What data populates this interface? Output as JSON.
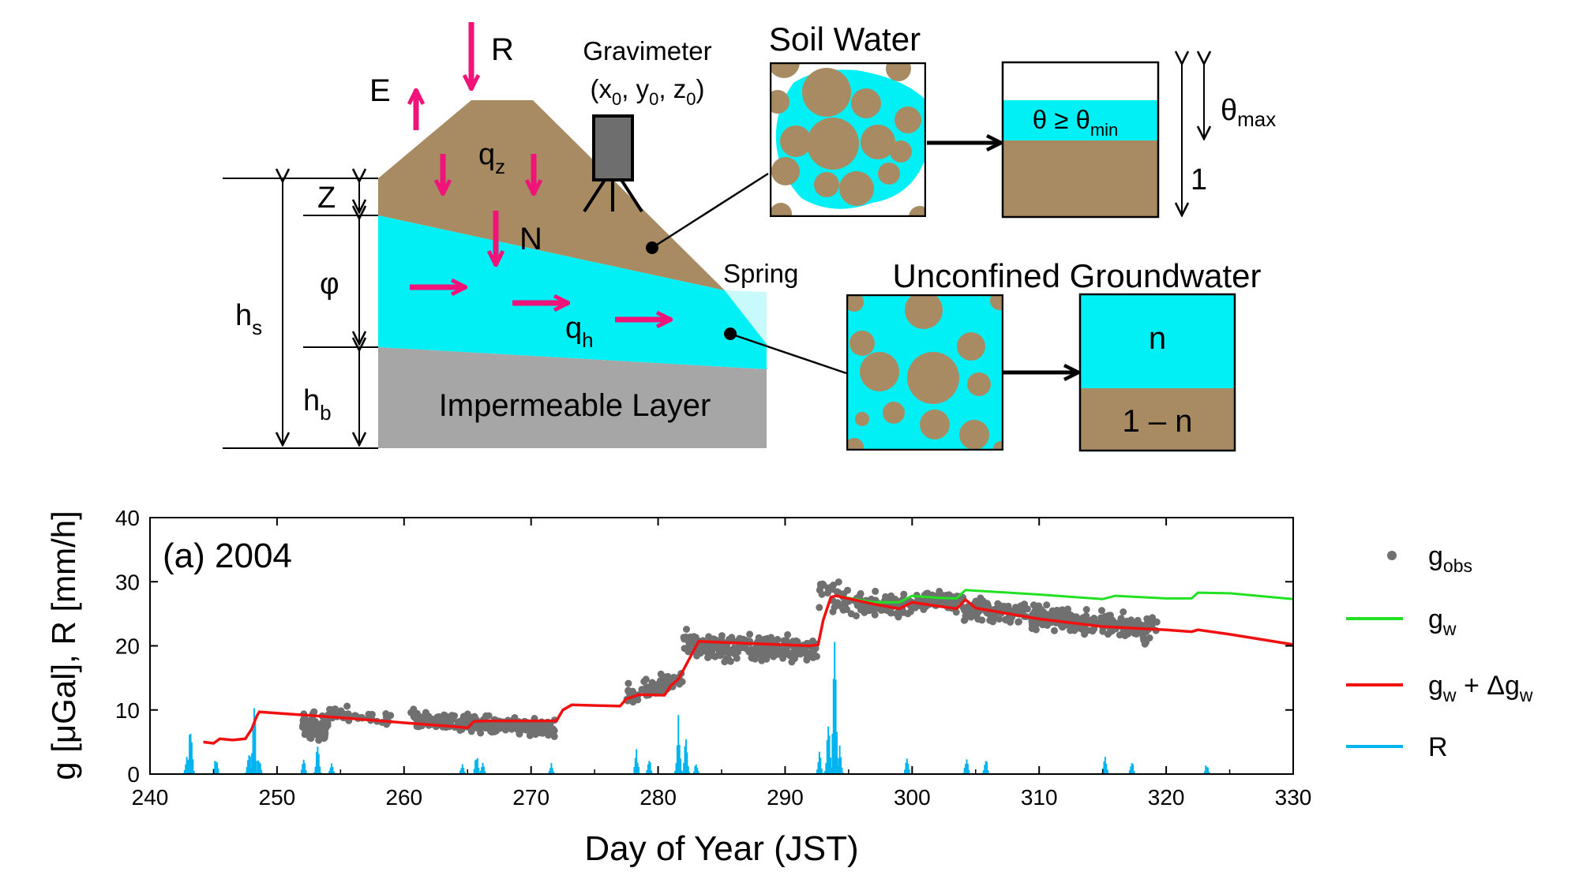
{
  "diagram": {
    "labels": {
      "rain": "R",
      "evap": "E",
      "gravimeter": "Gravimeter",
      "grav_coord_x": "(x",
      "grav_coord_sub0": "0",
      "grav_coord_y": ", y",
      "grav_coord_z": ", z",
      "grav_coord_close": ")",
      "qz": "q",
      "qz_sub": "z",
      "N": "N",
      "Z": "Z",
      "phi": "φ",
      "hs": "h",
      "hs_sub": "s",
      "hb": "h",
      "hb_sub": "b",
      "qh": "q",
      "qh_sub": "h",
      "impermeable": "Impermeable Layer",
      "spring": "Spring",
      "soil_water": "Soil Water",
      "theta_ineq": "θ ≥ θ",
      "theta_ineq_sub": "min",
      "theta_max": "θ",
      "theta_max_sub": "max",
      "one": "1",
      "unconfined": "Unconfined Groundwater",
      "n": "n",
      "one_minus_n": "1 – n"
    },
    "colors": {
      "soil": "#a88b62",
      "water": "#00f0f5",
      "impermeable": "#a6a6a6",
      "arrow": "#f0147a",
      "gravimeter": "#6e6e6e"
    }
  },
  "chart_data": {
    "type": "line",
    "panel_label": "(a) 2004",
    "xlabel": "Day of Year (JST)",
    "ylabel": "g [μGal], R [mm/h]",
    "xlim": [
      240,
      330
    ],
    "ylim": [
      0,
      40
    ],
    "xticks": [
      240,
      250,
      260,
      270,
      280,
      290,
      300,
      310,
      320,
      330
    ],
    "yticks": [
      0,
      10,
      20,
      30,
      40
    ],
    "legend_position": "right",
    "legend": [
      {
        "key": "g_obs",
        "label": "g",
        "sub": "obs",
        "suffix": "",
        "style": "dot",
        "color": "#707070"
      },
      {
        "key": "g_w",
        "label": "g",
        "sub": "w",
        "suffix": "",
        "style": "line",
        "color": "#22e022"
      },
      {
        "key": "g_w_dgw",
        "label": "g",
        "sub": "w",
        "suffix": " + Δg",
        "sub2": "w",
        "style": "line",
        "color": "#f01010"
      },
      {
        "key": "R",
        "label": "R",
        "sub": "",
        "suffix": "",
        "style": "line",
        "color": "#00b4f0"
      }
    ],
    "series": [
      {
        "name": "g_w + Δg_w",
        "color": "#f01010",
        "x": [
          244.2,
          245.0,
          245.5,
          246.5,
          247.5,
          248.0,
          248.4,
          248.6,
          255,
          260,
          264,
          265,
          265.5,
          266.5,
          272,
          272.5,
          273.2,
          277,
          277.5,
          278.5,
          280.5,
          281.0,
          281.6,
          282.6,
          283.2,
          292,
          292.6,
          293.0,
          293.6,
          294.0,
          297,
          299,
          300,
          302,
          303.5,
          304.2,
          305,
          310,
          315,
          320,
          322,
          322.5,
          325,
          330
        ],
        "y": [
          5.0,
          4.8,
          5.5,
          5.3,
          5.5,
          7.0,
          9.0,
          9.7,
          8.8,
          8.0,
          7.4,
          7.2,
          8.2,
          8.3,
          8.3,
          10.0,
          10.8,
          10.6,
          11.7,
          12.4,
          12.3,
          13.8,
          14.8,
          18.5,
          20.7,
          20.0,
          20.2,
          24.0,
          27.6,
          27.8,
          26.5,
          25.8,
          26.8,
          26.2,
          25.8,
          27.2,
          25.9,
          24.2,
          23.0,
          22.5,
          22.2,
          22.5,
          21.8,
          20.2
        ]
      },
      {
        "name": "g_w",
        "color": "#22e022",
        "x": [
          294.0,
          297,
          299,
          300,
          302,
          303.5,
          304.2,
          305,
          310,
          315,
          316,
          320,
          322,
          322.5,
          325,
          330
        ],
        "y": [
          27.8,
          26.8,
          26.8,
          27.8,
          27.5,
          27.4,
          28.7,
          28.6,
          28.0,
          27.3,
          27.8,
          27.4,
          27.4,
          28.3,
          28.2,
          27.3
        ]
      }
    ],
    "obs_segments": [
      {
        "x0": 252.0,
        "x1": 254.0,
        "y0": 7.5,
        "y1": 7.5,
        "spread": 2.8,
        "n": 90
      },
      {
        "x0": 254.0,
        "x1": 259.0,
        "y0": 9.6,
        "y1": 8.4,
        "spread": 1.6,
        "n": 40
      },
      {
        "x0": 260.5,
        "x1": 272.0,
        "y0": 8.6,
        "y1": 7.0,
        "spread": 1.8,
        "n": 230
      },
      {
        "x0": 277.5,
        "x1": 282.0,
        "y0": 12.5,
        "y1": 14.5,
        "spread": 2.4,
        "n": 60
      },
      {
        "x0": 282.0,
        "x1": 292.5,
        "y0": 20.0,
        "y1": 19.3,
        "spread": 2.8,
        "n": 230
      },
      {
        "x0": 292.5,
        "x1": 295.5,
        "y0": 29.0,
        "y1": 26.5,
        "spread": 3.5,
        "n": 35
      },
      {
        "x0": 295.5,
        "x1": 304.0,
        "y0": 26.3,
        "y1": 26.8,
        "spread": 2.4,
        "n": 170
      },
      {
        "x0": 304.0,
        "x1": 319.3,
        "y0": 25.8,
        "y1": 22.5,
        "spread": 2.8,
        "n": 300
      }
    ],
    "rain_events": [
      {
        "day": 242.9,
        "peak": 3.0
      },
      {
        "day": 243.2,
        "peak": 9.0
      },
      {
        "day": 245.2,
        "peak": 3.0
      },
      {
        "day": 247.8,
        "peak": 4.0
      },
      {
        "day": 248.2,
        "peak": 11.5
      },
      {
        "day": 248.6,
        "peak": 3.0
      },
      {
        "day": 252.1,
        "peak": 3.0
      },
      {
        "day": 253.2,
        "peak": 5.0
      },
      {
        "day": 254.3,
        "peak": 2.0
      },
      {
        "day": 264.6,
        "peak": 2.0
      },
      {
        "day": 265.7,
        "peak": 3.5
      },
      {
        "day": 266.2,
        "peak": 2.5
      },
      {
        "day": 271.6,
        "peak": 1.8
      },
      {
        "day": 278.3,
        "peak": 4.0
      },
      {
        "day": 279.3,
        "peak": 3.0
      },
      {
        "day": 281.6,
        "peak": 9.5
      },
      {
        "day": 282.2,
        "peak": 6.0
      },
      {
        "day": 283.0,
        "peak": 1.8
      },
      {
        "day": 292.7,
        "peak": 3.5
      },
      {
        "day": 293.4,
        "peak": 9.0
      },
      {
        "day": 293.9,
        "peak": 25.0
      },
      {
        "day": 294.3,
        "peak": 5.0
      },
      {
        "day": 299.6,
        "peak": 2.5
      },
      {
        "day": 304.3,
        "peak": 3.5
      },
      {
        "day": 305.8,
        "peak": 3.0
      },
      {
        "day": 315.2,
        "peak": 3.5
      },
      {
        "day": 317.3,
        "peak": 2.5
      },
      {
        "day": 323.2,
        "peak": 1.8
      }
    ]
  }
}
